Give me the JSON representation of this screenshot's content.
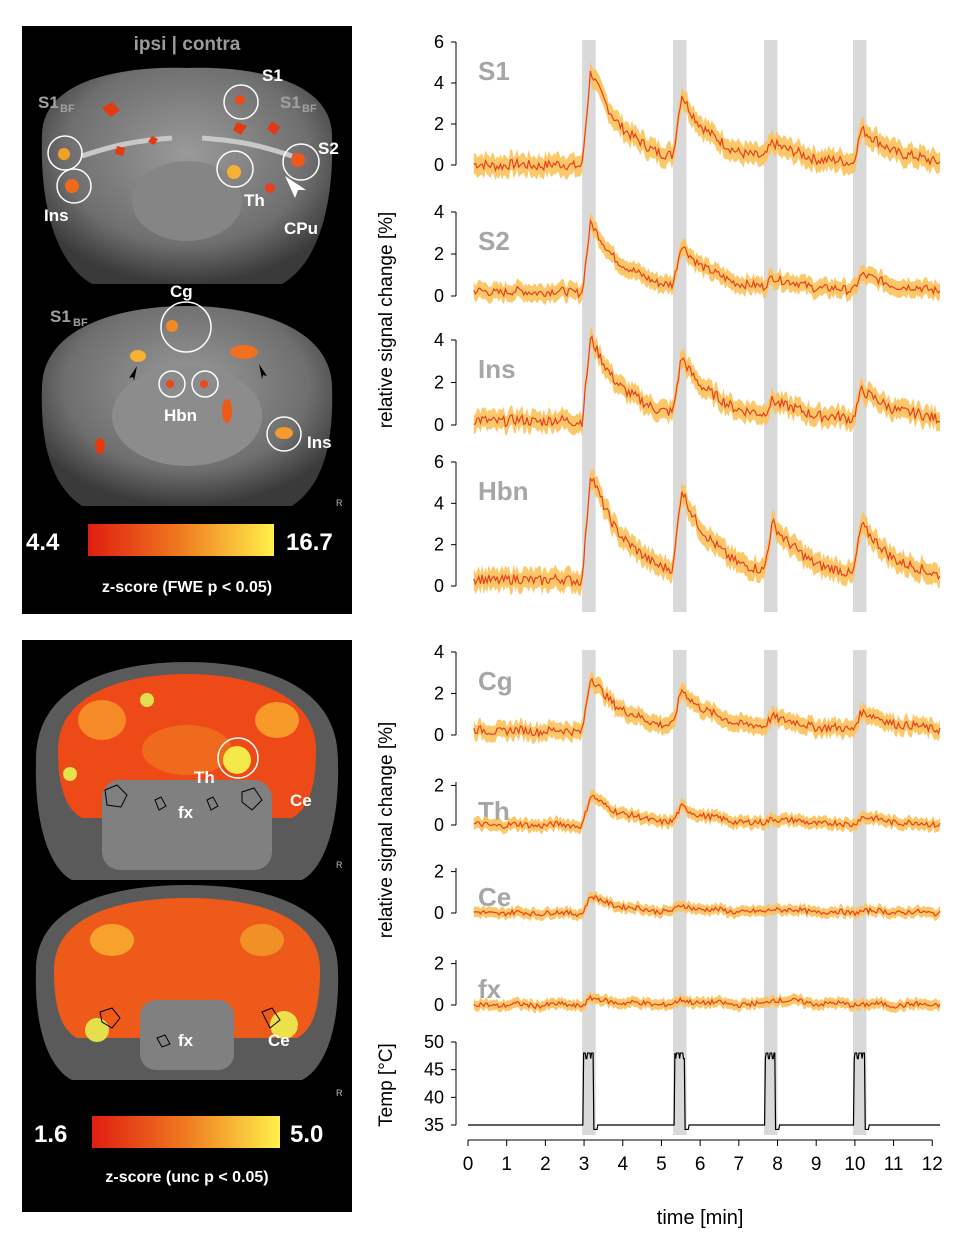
{
  "top_panel": {
    "header": "ipsi | contra",
    "slice1_labels": [
      "S1",
      "S1",
      "BF",
      "S1",
      "BF",
      "S2",
      "Ins",
      "Th",
      "CPu"
    ],
    "slice2_labels": [
      "Cg",
      "S1",
      "BF",
      "Hbn",
      "Ins"
    ],
    "orientation_mark": "R",
    "colorbar": {
      "min": "4.4",
      "max": "16.7",
      "caption": "z-score (FWE p < 0.05)",
      "color_low": "#e01e10",
      "color_high": "#fff04a"
    }
  },
  "bottom_panel": {
    "slice1_labels": [
      "Th",
      "fx",
      "Ce"
    ],
    "slice2_labels": [
      "fx",
      "Ce"
    ],
    "orientation_mark": "R",
    "colorbar": {
      "min": "1.6",
      "max": "5.0",
      "caption": "z-score (unc p < 0.05)",
      "color_low": "#e01e10",
      "color_high": "#fff04a"
    }
  },
  "chart_data": {
    "type": "line",
    "x_label": "time [min]",
    "xlim": [
      0,
      12.2
    ],
    "x_ticks": [
      0,
      1,
      2,
      3,
      4,
      5,
      6,
      7,
      8,
      9,
      10,
      11,
      12
    ],
    "stimulus_windows_min": [
      [
        2.95,
        3.3
      ],
      [
        5.3,
        5.65
      ],
      [
        7.65,
        8.0
      ],
      [
        9.95,
        10.3
      ]
    ],
    "colors": {
      "line": "#e8401c",
      "band": "#fdc25a",
      "stim": "#d9d9d9",
      "label": "#a6a6a6"
    },
    "groups": [
      {
        "ylabel": "relative signal change [%]"
      },
      {
        "ylabel": "relative signal change [%]"
      }
    ],
    "series": [
      {
        "name": "S1",
        "ylim": [
          0,
          6
        ],
        "yticks": [
          0,
          2,
          4,
          6
        ],
        "baseline": 0.0,
        "peaks": [
          4.6,
          3.1,
          0.9,
          1.7
        ],
        "noise": 0.25,
        "band": 0.5
      },
      {
        "name": "S2",
        "ylim": [
          0,
          4
        ],
        "yticks": [
          0,
          2,
          4
        ],
        "baseline": 0.2,
        "peaks": [
          3.3,
          2.0,
          0.6,
          0.8
        ],
        "noise": 0.2,
        "band": 0.4
      },
      {
        "name": "Ins",
        "ylim": [
          0,
          4
        ],
        "yticks": [
          0,
          2,
          4
        ],
        "baseline": 0.2,
        "peaks": [
          3.9,
          2.7,
          0.8,
          1.4
        ],
        "noise": 0.25,
        "band": 0.45
      },
      {
        "name": "Hbn",
        "ylim": [
          0,
          6
        ],
        "yticks": [
          0,
          2,
          4,
          6
        ],
        "baseline": 0.3,
        "peaks": [
          5.2,
          4.0,
          2.5,
          2.5
        ],
        "noise": 0.25,
        "band": 0.5
      },
      {
        "name": "Cg",
        "ylim": [
          0,
          4
        ],
        "yticks": [
          0,
          2,
          4
        ],
        "baseline": 0.2,
        "peaks": [
          2.6,
          1.8,
          0.6,
          0.9
        ],
        "noise": 0.2,
        "band": 0.4
      },
      {
        "name": "Th",
        "ylim": [
          0,
          2
        ],
        "yticks": [
          0,
          2
        ],
        "baseline": 0.0,
        "peaks": [
          1.5,
          0.8,
          0.3,
          0.4
        ],
        "noise": 0.15,
        "band": 0.3
      },
      {
        "name": "Ce",
        "ylim": [
          0,
          2
        ],
        "yticks": [
          0,
          2
        ],
        "baseline": 0.0,
        "peaks": [
          0.8,
          0.3,
          0.2,
          0.1
        ],
        "noise": 0.12,
        "band": 0.25
      },
      {
        "name": "fx",
        "ylim": [
          0,
          2
        ],
        "yticks": [
          0,
          2
        ],
        "baseline": 0.0,
        "peaks": [
          0.3,
          0.2,
          0.3,
          0.0
        ],
        "noise": 0.12,
        "band": 0.25
      }
    ],
    "temperature": {
      "ylabel": "Temp [°C]",
      "ylim": [
        35,
        50
      ],
      "yticks": [
        35,
        40,
        45,
        50
      ],
      "baseline": 35,
      "peak": 48
    }
  }
}
